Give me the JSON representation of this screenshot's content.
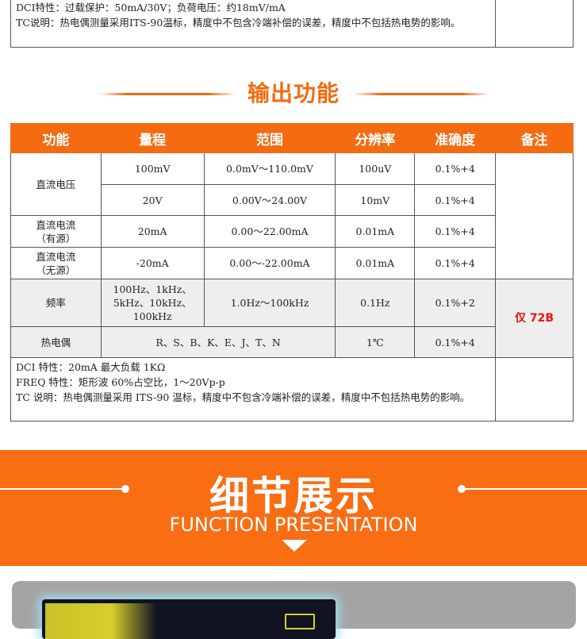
{
  "top_notes": {
    "lines": [
      "DCI特性：过载保护：50mA/30V；负荷电压：约18mV/mA",
      "TC说明：热电偶测量采用ITS-90温标，精度中不包含冷端补偿的误差，精度中不包括热电势的影响。"
    ]
  },
  "section_title": "输出功能",
  "table": {
    "headers": [
      "功能",
      "量程",
      "范围",
      "分辨率",
      "准确度",
      "备注"
    ],
    "rows": {
      "dcv": {
        "func": "直流电压",
        "r1": [
          "100mV",
          "0.0mV～110.0mV",
          "100uV",
          "0.1%+4"
        ],
        "r2": [
          "20V",
          "0.00V～24.00V",
          "10mV",
          "0.1%+4"
        ]
      },
      "dci_active": {
        "func": "直流电流\n（有源）",
        "cells": [
          "20mA",
          "0.00～22.00mA",
          "0.01mA",
          "0.1%+4"
        ]
      },
      "dci_passive": {
        "func": "直流电流\n（无源）",
        "cells": [
          "-20mA",
          "0.00～-22.00mA",
          "0.01mA",
          "0.1%+4"
        ]
      },
      "freq": {
        "func": "频率",
        "range_lines": [
          "100Hz、1kHz、",
          "5kHz、10kHz、",
          "100kHz"
        ],
        "cells": [
          "1.0Hz～100kHz",
          "0.1Hz",
          "0.1%+2"
        ]
      },
      "tc": {
        "func": "热电偶",
        "types": "R、S、B、K、E、J、T、N",
        "cells": [
          "1℃",
          "0.1%+4"
        ]
      }
    },
    "remark_72b": "仅 72B",
    "notes": [
      "DCI 特性：20mA 最大负载 1KΩ",
      "FREQ 特性：矩形波 60%占空比，1～20Vp-p",
      "TC 说明：热电偶测量采用 ITS-90 温标，精度中不包含冷端补偿的误差，精度中不包括热电势的影响。"
    ]
  },
  "banner": {
    "title": "细节展示",
    "subtitle": "FUNCTION PRESENTATION",
    "color": "#f96d13"
  },
  "colors": {
    "accent": "#f56b12",
    "remark": "#e11111"
  }
}
